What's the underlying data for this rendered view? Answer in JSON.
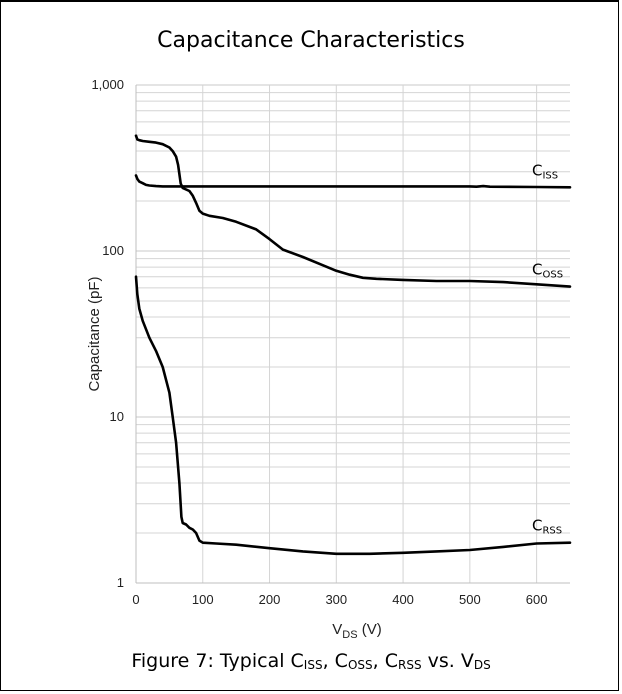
{
  "chart_data": {
    "type": "line",
    "title": "Capacitance Characteristics",
    "xlabel": {
      "main": "V",
      "sub": "DS",
      "rest": " (V)"
    },
    "ylabel": "Capacitance (pF)",
    "xlim": [
      0,
      650
    ],
    "ylim": [
      1,
      1000
    ],
    "yscale": "log",
    "grid": true,
    "x_ticks": [
      0,
      100,
      200,
      300,
      400,
      500,
      600
    ],
    "x_tick_labels": [
      "0",
      "100",
      "200",
      "300",
      "400",
      "500",
      "600"
    ],
    "y_ticks": [
      1,
      10,
      100,
      1000
    ],
    "y_tick_labels": [
      "1",
      "10",
      "100",
      "1,000"
    ],
    "series": [
      {
        "name": "C_ISS",
        "label_main": "C",
        "label_sub": "ISS",
        "x": [
          0,
          2,
          5,
          10,
          15,
          20,
          30,
          40,
          50,
          60,
          70,
          80,
          100,
          150,
          200,
          300,
          400,
          500,
          510,
          520,
          530,
          600,
          650
        ],
        "y": [
          285,
          272,
          262,
          256,
          250,
          248,
          246,
          245,
          245,
          245,
          245,
          245,
          245,
          245,
          245,
          245,
          245,
          245,
          244,
          246,
          244,
          243,
          242
        ]
      },
      {
        "name": "C_OSS",
        "label_main": "C",
        "label_sub": "OSS",
        "x": [
          0,
          2,
          5,
          10,
          20,
          30,
          40,
          50,
          55,
          60,
          63,
          65,
          67,
          70,
          80,
          85,
          90,
          95,
          100,
          110,
          130,
          150,
          180,
          200,
          220,
          250,
          280,
          300,
          320,
          340,
          360,
          400,
          450,
          500,
          550,
          600,
          650
        ],
        "y": [
          495,
          470,
          465,
          460,
          455,
          450,
          440,
          420,
          400,
          370,
          330,
          290,
          255,
          240,
          230,
          215,
          195,
          175,
          168,
          163,
          158,
          150,
          135,
          118,
          102,
          92,
          82,
          76,
          72,
          69,
          68,
          67,
          66,
          66,
          65,
          63,
          61
        ]
      },
      {
        "name": "C_RSS",
        "label_main": "C",
        "label_sub": "RSS",
        "x": [
          0,
          2,
          5,
          10,
          20,
          30,
          40,
          50,
          55,
          60,
          65,
          68,
          70,
          75,
          80,
          85,
          90,
          95,
          100,
          120,
          150,
          200,
          250,
          300,
          350,
          400,
          450,
          500,
          550,
          600,
          650
        ],
        "y": [
          70,
          55,
          45,
          38,
          30,
          25,
          20,
          14,
          10,
          7,
          4,
          2.5,
          2.3,
          2.25,
          2.15,
          2.1,
          2.0,
          1.8,
          1.75,
          1.73,
          1.7,
          1.62,
          1.55,
          1.5,
          1.5,
          1.52,
          1.55,
          1.58,
          1.65,
          1.73,
          1.75
        ]
      }
    ]
  },
  "caption": {
    "prefix": "Figure 7: Typical C",
    "c1_sub": "ISS",
    "sep1": ", C",
    "c2_sub": "OSS",
    "sep2": ", C",
    "c3_sub": "RSS",
    "mid": " vs. V",
    "v_sub": "DS"
  }
}
